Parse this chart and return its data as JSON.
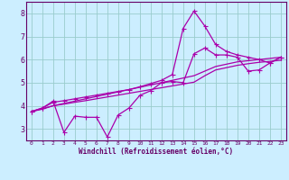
{
  "xlabel": "Windchill (Refroidissement éolien,°C)",
  "bg_color": "#cceeff",
  "line_color": "#aa00aa",
  "grid_color": "#99cccc",
  "axis_color": "#660066",
  "text_color": "#660066",
  "xlim": [
    -0.5,
    23.5
  ],
  "ylim": [
    2.5,
    8.5
  ],
  "xticks": [
    0,
    1,
    2,
    3,
    4,
    5,
    6,
    7,
    8,
    9,
    10,
    11,
    12,
    13,
    14,
    15,
    16,
    17,
    18,
    19,
    20,
    21,
    22,
    23
  ],
  "yticks": [
    3,
    4,
    5,
    6,
    7,
    8
  ],
  "series1_x": [
    0,
    1,
    2,
    3,
    4,
    5,
    6,
    7,
    8,
    9,
    10,
    11,
    12,
    13,
    14,
    15,
    16,
    17,
    18,
    19,
    20,
    21,
    22,
    23
  ],
  "series1_y": [
    3.75,
    3.9,
    4.2,
    2.85,
    3.55,
    3.5,
    3.5,
    2.65,
    3.6,
    3.9,
    4.45,
    4.65,
    5.0,
    5.05,
    5.0,
    6.25,
    6.5,
    6.2,
    6.2,
    6.1,
    5.5,
    5.55,
    5.85,
    6.1
  ],
  "series2_x": [
    0,
    1,
    2,
    3,
    4,
    5,
    6,
    7,
    8,
    9,
    10,
    11,
    12,
    13,
    14,
    15,
    16,
    17,
    18,
    19,
    20,
    21,
    22,
    23
  ],
  "series2_y": [
    3.75,
    3.85,
    4.0,
    4.07,
    4.15,
    4.22,
    4.3,
    4.38,
    4.46,
    4.54,
    4.62,
    4.7,
    4.78,
    4.86,
    4.94,
    5.02,
    5.3,
    5.55,
    5.65,
    5.75,
    5.82,
    5.88,
    5.92,
    5.97
  ],
  "series3_x": [
    0,
    1,
    2,
    3,
    4,
    5,
    6,
    7,
    8,
    9,
    10,
    11,
    12,
    13,
    14,
    15,
    16,
    17,
    18,
    19,
    20,
    21,
    22,
    23
  ],
  "series3_y": [
    3.75,
    3.87,
    4.0,
    4.1,
    4.2,
    4.3,
    4.4,
    4.5,
    4.6,
    4.7,
    4.8,
    4.9,
    5.0,
    5.1,
    5.2,
    5.3,
    5.5,
    5.7,
    5.8,
    5.9,
    5.95,
    6.0,
    6.05,
    6.1
  ],
  "series4_x": [
    0,
    1,
    2,
    3,
    4,
    5,
    6,
    7,
    8,
    9,
    10,
    11,
    12,
    13,
    14,
    15,
    16,
    17,
    18,
    19,
    20,
    21,
    22,
    23
  ],
  "series4_y": [
    3.75,
    3.9,
    4.15,
    4.22,
    4.3,
    4.38,
    4.46,
    4.54,
    4.62,
    4.7,
    4.82,
    4.96,
    5.1,
    5.35,
    7.35,
    8.1,
    7.45,
    6.65,
    6.35,
    6.2,
    6.1,
    6.0,
    5.85,
    6.1
  ]
}
